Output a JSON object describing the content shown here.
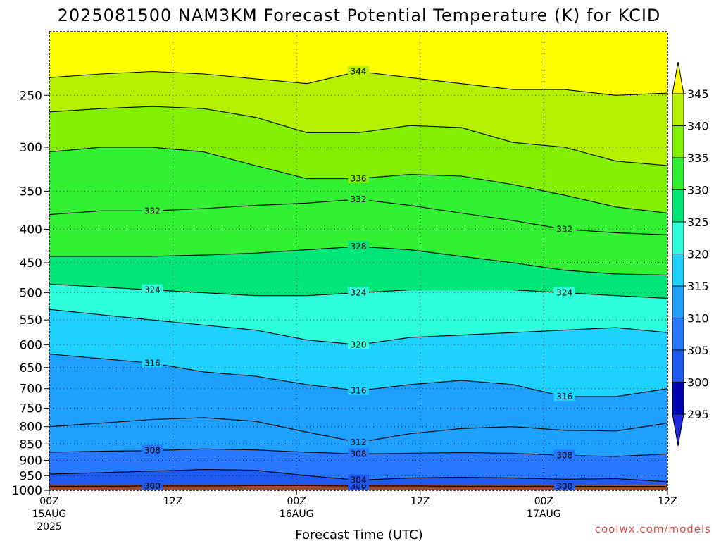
{
  "chart_data": {
    "type": "heatmap",
    "title": "2025081500 NAM3KM Forecast Potential Temperature (K) for KCID",
    "xlabel": "Forecast Time (UTC)",
    "ylabel": "",
    "credit": "coolwx.com/models",
    "y_scale": "log",
    "ylim": [
      1000,
      200
    ],
    "y_ticks": [
      250,
      300,
      350,
      400,
      450,
      500,
      550,
      600,
      650,
      700,
      750,
      800,
      850,
      900,
      950,
      1000
    ],
    "x_range_hours": [
      0,
      60
    ],
    "x_ticks": [
      {
        "hour": 0,
        "top": "00Z",
        "mid": "15AUG",
        "bot": "2025"
      },
      {
        "hour": 12,
        "top": "12Z",
        "mid": "",
        "bot": ""
      },
      {
        "hour": 24,
        "top": "00Z",
        "mid": "16AUG",
        "bot": ""
      },
      {
        "hour": 36,
        "top": "12Z",
        "mid": "",
        "bot": ""
      },
      {
        "hour": 48,
        "top": "00Z",
        "mid": "17AUG",
        "bot": ""
      },
      {
        "hour": 60,
        "top": "12Z",
        "mid": "",
        "bot": ""
      }
    ],
    "grid": true,
    "surface_pressure": 980,
    "surface_color": "#9c4a2e",
    "colorbar": {
      "levels": [
        295,
        300,
        305,
        310,
        315,
        320,
        325,
        330,
        335,
        340,
        345
      ],
      "labels": [
        "295",
        "300",
        "305",
        "310",
        "315",
        "320",
        "325",
        "330",
        "335",
        "340",
        "345"
      ],
      "colors": [
        "#1e28dc",
        "#0000b4",
        "#1e5af0",
        "#2878ff",
        "#1ea0ff",
        "#1ed2ff",
        "#2dffdc",
        "#00e678",
        "#32f032",
        "#82f000",
        "#b4f000",
        "#ffff00"
      ]
    },
    "series": [
      {
        "value": 300,
        "pressure": [
          986,
          986,
          985,
          985,
          984,
          984,
          985,
          985,
          986,
          986,
          986,
          987,
          987
        ],
        "labeled": true
      },
      {
        "value": 304,
        "pressure": [
          945,
          940,
          935,
          930,
          932,
          950,
          965,
          958,
          955,
          958,
          962,
          960,
          970
        ],
        "labeled": true
      },
      {
        "value": 308,
        "pressure": [
          875,
          872,
          870,
          865,
          868,
          875,
          880,
          878,
          876,
          878,
          885,
          888,
          880
        ],
        "labeled": true
      },
      {
        "value": 312,
        "pressure": [
          800,
          790,
          780,
          775,
          785,
          815,
          845,
          820,
          805,
          800,
          810,
          812,
          790
        ],
        "labeled": true
      },
      {
        "value": 316,
        "pressure": [
          620,
          630,
          640,
          660,
          670,
          690,
          705,
          690,
          680,
          690,
          720,
          720,
          700
        ],
        "labeled": true
      },
      {
        "value": 320,
        "pressure": [
          530,
          540,
          550,
          560,
          570,
          590,
          600,
          585,
          580,
          575,
          570,
          565,
          575
        ],
        "labeled": true
      },
      {
        "value": 324,
        "pressure": [
          485,
          490,
          495,
          500,
          505,
          505,
          500,
          495,
          495,
          495,
          500,
          505,
          510
        ],
        "labeled": true
      },
      {
        "value": 328,
        "pressure": [
          440,
          440,
          440,
          438,
          435,
          430,
          425,
          430,
          440,
          450,
          462,
          468,
          470
        ],
        "labeled": true
      },
      {
        "value": 332,
        "pressure": [
          380,
          375,
          375,
          372,
          368,
          365,
          360,
          368,
          378,
          388,
          400,
          405,
          408
        ],
        "labeled": true
      },
      {
        "value": 336,
        "pressure": [
          305,
          300,
          300,
          305,
          320,
          335,
          335,
          330,
          332,
          342,
          355,
          370,
          378
        ],
        "labeled": true
      },
      {
        "value": 340,
        "pressure": [
          265,
          262,
          260,
          262,
          270,
          285,
          285,
          278,
          280,
          295,
          300,
          315,
          320
        ],
        "labeled": false
      },
      {
        "value": 344,
        "pressure": [
          235,
          232,
          230,
          232,
          236,
          240,
          230,
          235,
          240,
          245,
          245,
          250,
          248
        ],
        "labeled": true
      }
    ]
  }
}
